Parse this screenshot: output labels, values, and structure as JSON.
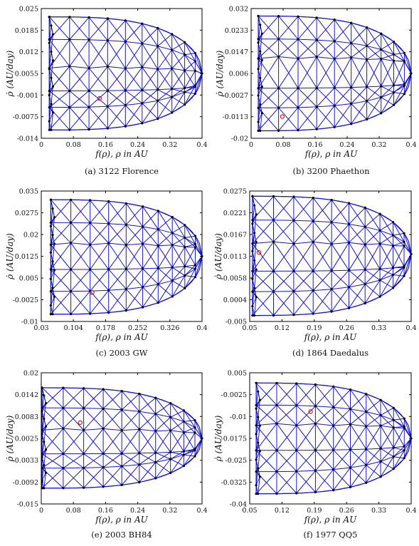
{
  "chart_data": [
    {
      "panel": "a",
      "type": "scatter",
      "caption": "(a) 3122 Florence",
      "xlabel": "f(ρ),  ρ in AU",
      "ylabel": "ρ̇ (AU/day)",
      "xticks": [
        "0",
        "0.08",
        "0.16",
        "0.24",
        "0.32",
        "0.4"
      ],
      "yticks": [
        "0.025",
        "0.0185",
        "0.012",
        "0.0055",
        "-0.001",
        "-0.0075",
        "-0.014"
      ],
      "xlim": [
        0,
        0.4
      ],
      "ylim": [
        -0.014,
        0.025
      ],
      "domain": {
        "x_left": 0.02,
        "x_right": 0.4,
        "y_top": 0.0225,
        "y_bottom": -0.0115,
        "y_tip": 0.0055
      },
      "mesh": {
        "columns": 10,
        "nodes_per_column": 4,
        "band_min_y": 0.0055,
        "band_min_y2": -0.002
      },
      "marker": {
        "x": 0.145,
        "y": -0.002
      },
      "colors": {
        "mesh": "#1515cc",
        "nodes": "#000000",
        "marker": "#e01010"
      }
    },
    {
      "panel": "b",
      "type": "scatter",
      "caption": "(b) 3200 Phaethon",
      "xlabel": "f(ρ),  ρ in AU",
      "ylabel": "ρ̇ (AU/day)",
      "xticks": [
        "0",
        "0.08",
        "0.16",
        "0.24",
        "0.32",
        "0.4"
      ],
      "yticks": [
        "0.032",
        "0.0233",
        "0.0147",
        "0.006",
        "-0.0027",
        "-0.0113",
        "-0.02"
      ],
      "xlim": [
        0,
        0.4
      ],
      "ylim": [
        -0.02,
        0.032
      ],
      "domain": {
        "x_left": 0.018,
        "x_right": 0.4,
        "y_top": 0.029,
        "y_bottom": -0.017,
        "y_tip": 0.006
      },
      "mesh": {
        "columns": 10,
        "nodes_per_column": 4,
        "band_min_y": 0.0145,
        "band_min_y2": -0.0015
      },
      "marker": {
        "x": 0.078,
        "y": -0.0113
      },
      "colors": {
        "mesh": "#1515cc",
        "nodes": "#000000",
        "marker": "#e01010"
      }
    },
    {
      "panel": "c",
      "type": "scatter",
      "caption": "(c) 2003 GW",
      "xlabel": "f(ρ),  ρ in AU",
      "ylabel": "ρ̇ (AU/day)",
      "xticks": [
        "0.03",
        "0.104",
        "0.178",
        "0.252",
        "0.326",
        "0.4"
      ],
      "yticks": [
        "0.035",
        "0.0275",
        "0.02",
        "0.0125",
        "0.005",
        "-0.0025",
        "-0.01"
      ],
      "xlim": [
        0.03,
        0.4
      ],
      "ylim": [
        -0.01,
        0.035
      ],
      "domain": {
        "x_left": 0.052,
        "x_right": 0.4,
        "y_top": 0.032,
        "y_bottom": -0.0075,
        "y_tip": 0.0125
      },
      "mesh": {
        "columns": 10,
        "nodes_per_column": 4,
        "band_min_y": 0.0175,
        "band_min_y2": 0.0075
      },
      "marker": {
        "x": 0.147,
        "y": 0.0
      },
      "colors": {
        "mesh": "#1515cc",
        "nodes": "#000000",
        "marker": "#e01010"
      }
    },
    {
      "panel": "d",
      "type": "scatter",
      "caption": "(d) 1864 Daedalus",
      "xlabel": "f(ρ),  ρ in AU",
      "ylabel": "ρ̇ (AU/day)",
      "xticks": [
        "0.05",
        "0.12",
        "0.19",
        "0.26",
        "0.33",
        "0.4"
      ],
      "yticks": [
        "0.0275",
        "0.0221",
        "0.0167",
        "0.0113",
        "0.0058",
        "0.0004",
        "-0.005"
      ],
      "xlim": [
        0.05,
        0.4
      ],
      "ylim": [
        -0.005,
        0.0275
      ],
      "domain": {
        "x_left": 0.056,
        "x_right": 0.4,
        "y_top": 0.0262,
        "y_bottom": -0.0035,
        "y_tip": 0.0118
      },
      "mesh": {
        "columns": 10,
        "nodes_per_column": 4,
        "band_min_y": 0.015,
        "band_min_y2": 0.0065
      },
      "marker": {
        "x": 0.07,
        "y": 0.0122
      },
      "colors": {
        "mesh": "#1515cc",
        "nodes": "#000000",
        "marker": "#e01010"
      }
    },
    {
      "panel": "e",
      "type": "scatter",
      "caption": "(e) 2003 BH84",
      "xlabel": "f(ρ),  ρ in AU",
      "ylabel": "ρ̇ (AU/day)",
      "xticks": [
        "0",
        "0.08",
        "0.16",
        "0.24",
        "0.32",
        "0.4"
      ],
      "yticks": [
        "0.02",
        "0.0142",
        "0.0083",
        "0.0025",
        "-0.0033",
        "-0.0092",
        "-0.015"
      ],
      "xlim": [
        0,
        0.4
      ],
      "ylim": [
        -0.015,
        0.02
      ],
      "domain": {
        "x_left": 0.002,
        "x_right": 0.4,
        "y_top": 0.016,
        "y_bottom": -0.0108,
        "y_tip": 0.0025
      },
      "mesh": {
        "columns": 10,
        "nodes_per_column": 4,
        "band_min_y": 0.0045,
        "band_min_y2": -0.0035
      },
      "marker": {
        "x": 0.097,
        "y": 0.0067
      },
      "colors": {
        "mesh": "#1515cc",
        "nodes": "#000000",
        "marker": "#e01010"
      }
    },
    {
      "panel": "f",
      "type": "scatter",
      "caption": "(f) 1977 QQ5",
      "xlabel": "f(ρ),  ρ in AU",
      "ylabel": "ρ̇ (AU/day)",
      "xticks": [
        "0.05",
        "0.12",
        "0.19",
        "0.26",
        "0.33",
        "0.4"
      ],
      "yticks": [
        "0.005",
        "-0.0025",
        "-0.01",
        "-0.0175",
        "-0.025",
        "-0.0325",
        "-0.04"
      ],
      "xlim": [
        0.05,
        0.4
      ],
      "ylim": [
        -0.04,
        0.005
      ],
      "domain": {
        "x_left": 0.064,
        "x_right": 0.4,
        "y_top": 0.0015,
        "y_bottom": -0.0365,
        "y_tip": -0.0175
      },
      "mesh": {
        "columns": 10,
        "nodes_per_column": 4,
        "band_min_y": -0.0115,
        "band_min_y2": -0.022
      },
      "marker": {
        "x": 0.182,
        "y": -0.0083
      },
      "colors": {
        "mesh": "#1515cc",
        "nodes": "#000000",
        "marker": "#e01010"
      }
    }
  ]
}
